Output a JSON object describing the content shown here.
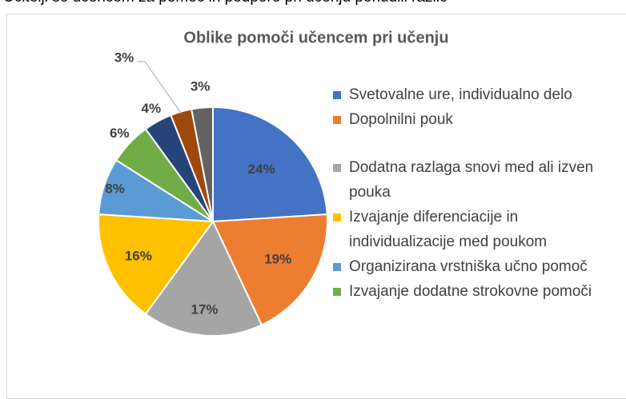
{
  "caption": "Učitelji so učencem za pomoč in podporo pri učenju ponudili različ",
  "chart_data": {
    "type": "pie",
    "title": "Oblike pomoči učencem pri učenju",
    "categories": [
      "Svetovalne ure, individualno delo",
      "Dopolnilni pouk",
      "Dodatna razlaga snovi med ali izven pouka",
      "Izvajanje diferenciacije  in individualizacije  med poukom",
      "Organizirana vrstniška učno pomoč",
      "Izvajanje dodatne strokovne pomoči",
      null,
      null,
      null
    ],
    "values": [
      24,
      19,
      17,
      16,
      8,
      6,
      4,
      3,
      3
    ],
    "value_labels": [
      "24%",
      "19%",
      "17%",
      "16%",
      "8%",
      "6%",
      "4%",
      "3%",
      "3%"
    ],
    "colors": [
      "#4472c4",
      "#ed7d31",
      "#a5a5a5",
      "#ffc000",
      "#5b9bd5",
      "#70ad47",
      "#264478",
      "#9e480e",
      "#636363"
    ],
    "legend": "right"
  }
}
